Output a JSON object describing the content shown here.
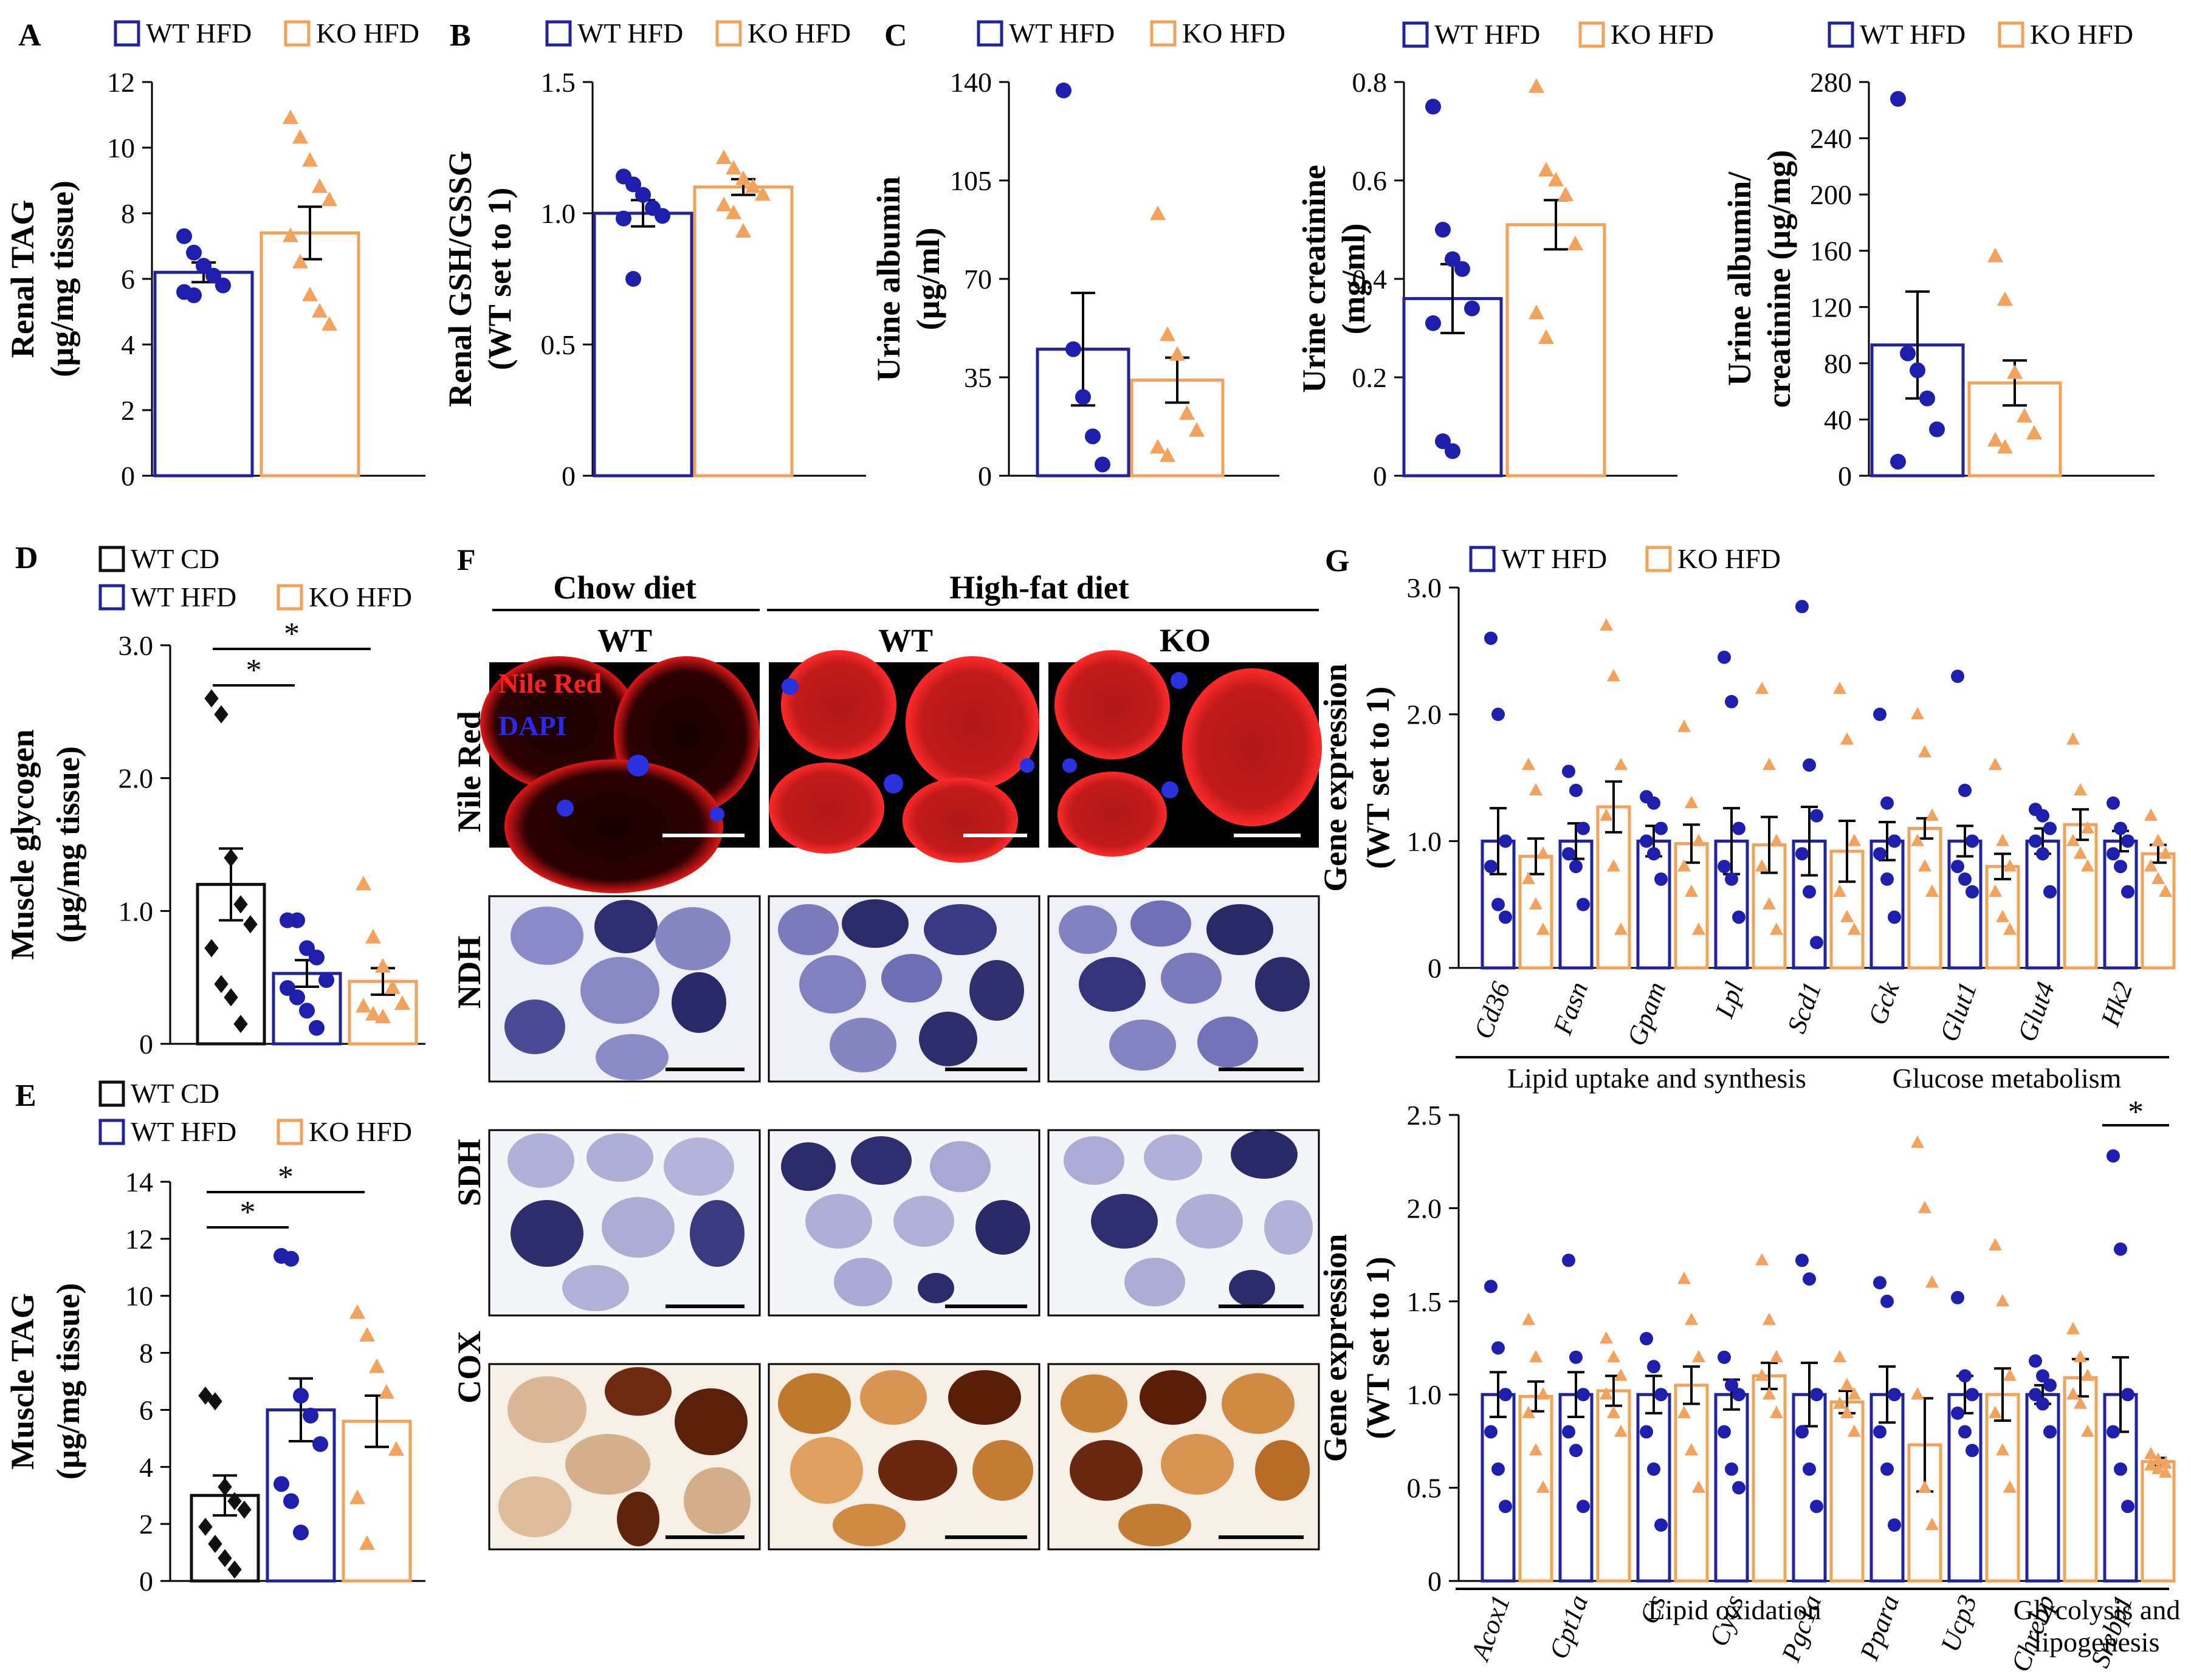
{
  "colors": {
    "wt_hfd": "#22229a",
    "ko_hfd": "#f0a15a",
    "wt_cd": "#111111",
    "wt_dot": "#1f1fae",
    "ko_dot": "#f2a25c",
    "nile_red": "#e8141e",
    "dapi": "#2a32e0",
    "ndh_sdh": "#3d3d86",
    "cox": "#8a4016"
  },
  "legend": {
    "wt_hfd": "WT HFD",
    "ko_hfd": "KO HFD",
    "wt_cd": "WT CD"
  },
  "chart_data": [
    {
      "id": "A",
      "type": "bar",
      "panel_label": "A",
      "ylabel_lines": [
        "Renal TAG",
        "(µg/mg tissue)"
      ],
      "ylim": [
        0,
        12
      ],
      "yticks": [
        0,
        2,
        4,
        6,
        8,
        10,
        12
      ],
      "tick_labels": [
        "0",
        "2",
        "4",
        "6",
        "8",
        "10",
        "12"
      ],
      "series": [
        {
          "name": "WT HFD",
          "mean": 6.2,
          "sem": 0.3,
          "points": [
            7.3,
            6.8,
            6.4,
            6.1,
            5.8,
            5.6,
            5.5
          ]
        },
        {
          "name": "KO HFD",
          "mean": 7.4,
          "sem": 0.8,
          "points": [
            10.9,
            10.3,
            9.6,
            8.8,
            8.4,
            7.3,
            6.5,
            5.5,
            5.0,
            4.6
          ]
        }
      ]
    },
    {
      "id": "B",
      "type": "bar",
      "panel_label": "B",
      "ylabel_lines": [
        "Renal GSH/GSSG",
        "(WT set to 1)"
      ],
      "ylim": [
        0,
        1.5
      ],
      "yticks": [
        0,
        0.5,
        1.0,
        1.5
      ],
      "tick_labels": [
        "0",
        "0.5",
        "1.0",
        "1.5"
      ],
      "series": [
        {
          "name": "WT HFD",
          "mean": 1.0,
          "sem": 0.05,
          "points": [
            1.14,
            1.11,
            1.07,
            1.02,
            0.99,
            0.98,
            0.75
          ]
        },
        {
          "name": "KO HFD",
          "mean": 1.1,
          "sem": 0.03,
          "points": [
            1.21,
            1.17,
            1.13,
            1.1,
            1.07,
            1.03,
            1.0,
            0.93
          ]
        }
      ]
    },
    {
      "id": "C1",
      "type": "bar",
      "panel_label": "C",
      "ylabel_lines": [
        "Urine albumin",
        "(µg/ml)"
      ],
      "ylim": [
        0,
        140
      ],
      "yticks": [
        0,
        35,
        70,
        105,
        140
      ],
      "tick_labels": [
        "0",
        "35",
        "70",
        "105",
        "140"
      ],
      "series": [
        {
          "name": "WT HFD",
          "mean": 45,
          "sem": 20,
          "points": [
            137,
            45,
            28,
            14,
            4
          ]
        },
        {
          "name": "KO HFD",
          "mean": 34,
          "sem": 8,
          "points": [
            93,
            50,
            43,
            22,
            16,
            10,
            7
          ]
        }
      ]
    },
    {
      "id": "C2",
      "type": "bar",
      "panel_label": "",
      "ylabel_lines": [
        "Urine creatinine",
        "(mg/ml)"
      ],
      "ylim": [
        0,
        0.8
      ],
      "yticks": [
        0,
        0.2,
        0.4,
        0.6,
        0.8
      ],
      "tick_labels": [
        "0",
        "0.2",
        "0.4",
        "0.6",
        "0.8"
      ],
      "series": [
        {
          "name": "WT HFD",
          "mean": 0.36,
          "sem": 0.07,
          "points": [
            0.75,
            0.5,
            0.44,
            0.42,
            0.34,
            0.31,
            0.07,
            0.05
          ]
        },
        {
          "name": "KO HFD",
          "mean": 0.51,
          "sem": 0.05,
          "points": [
            0.79,
            0.62,
            0.6,
            0.57,
            0.47,
            0.33,
            0.28
          ]
        }
      ]
    },
    {
      "id": "C3",
      "type": "bar",
      "panel_label": "",
      "ylabel_lines": [
        "Urine albumin/",
        "creatinine (µg/mg)"
      ],
      "ylim": [
        0,
        280
      ],
      "yticks": [
        0,
        40,
        80,
        120,
        160,
        200,
        240,
        280
      ],
      "tick_labels": [
        "0",
        "40",
        "80",
        "120",
        "160",
        "200",
        "240",
        "280"
      ],
      "series": [
        {
          "name": "WT HFD",
          "mean": 93,
          "sem": 38,
          "points": [
            268,
            87,
            75,
            55,
            33,
            10
          ]
        },
        {
          "name": "KO HFD",
          "mean": 66,
          "sem": 16,
          "points": [
            156,
            125,
            73,
            42,
            30,
            25,
            20
          ]
        }
      ]
    },
    {
      "id": "D",
      "type": "bar",
      "panel_label": "D",
      "ylabel_lines": [
        "Muscle glycogen",
        "(µg/mg tissue)"
      ],
      "ylim": [
        0,
        3.0
      ],
      "yticks": [
        0,
        1.0,
        2.0,
        3.0
      ],
      "tick_labels": [
        "0",
        "1.0",
        "2.0",
        "3.0"
      ],
      "significance": [
        {
          "from": 0,
          "to": 1,
          "label": "*"
        },
        {
          "from": 0,
          "to": 2,
          "label": "*"
        }
      ],
      "series": [
        {
          "name": "WT CD",
          "mean": 1.2,
          "sem": 0.27,
          "points": [
            2.6,
            2.48,
            1.4,
            1.05,
            0.9,
            0.72,
            0.45,
            0.35,
            0.15
          ]
        },
        {
          "name": "WT HFD",
          "mean": 0.53,
          "sem": 0.1,
          "points": [
            0.93,
            0.93,
            0.72,
            0.65,
            0.48,
            0.42,
            0.35,
            0.25,
            0.12
          ]
        },
        {
          "name": "KO HFD",
          "mean": 0.47,
          "sem": 0.1,
          "points": [
            1.2,
            0.8,
            0.58,
            0.42,
            0.3,
            0.28,
            0.22,
            0.2
          ]
        }
      ]
    },
    {
      "id": "E",
      "type": "bar",
      "panel_label": "E",
      "ylabel_lines": [
        "Muscle TAG",
        "(µg/mg tissue)"
      ],
      "ylim": [
        0,
        14
      ],
      "yticks": [
        0,
        2,
        4,
        6,
        8,
        10,
        12,
        14
      ],
      "tick_labels": [
        "0",
        "2",
        "4",
        "6",
        "8",
        "10",
        "12",
        "14"
      ],
      "significance": [
        {
          "from": 0,
          "to": 1,
          "label": "*"
        },
        {
          "from": 0,
          "to": 2,
          "label": "*"
        }
      ],
      "series": [
        {
          "name": "WT CD",
          "mean": 3.0,
          "sem": 0.7,
          "points": [
            6.5,
            6.3,
            3.3,
            2.8,
            2.5,
            1.9,
            1.3,
            0.8,
            0.4
          ]
        },
        {
          "name": "WT HFD",
          "mean": 6.0,
          "sem": 1.1,
          "points": [
            11.4,
            11.3,
            6.5,
            5.8,
            4.8,
            3.4,
            2.8,
            1.7
          ]
        },
        {
          "name": "KO HFD",
          "mean": 5.6,
          "sem": 0.9,
          "points": [
            9.4,
            8.6,
            7.5,
            6.6,
            4.6,
            2.9,
            1.3
          ]
        }
      ]
    },
    {
      "id": "G1",
      "type": "bar",
      "panel_label": "G",
      "ylabel_lines": [
        "Gene expression",
        "(WT set to 1)"
      ],
      "ylim": [
        0,
        3.0
      ],
      "yticks": [
        0,
        1.0,
        2.0,
        3.0
      ],
      "tick_labels": [
        "0",
        "1.0",
        "2.0",
        "3.0"
      ],
      "categories": [
        "Cd36",
        "Fasn",
        "Gpam",
        "Lpl",
        "Scd1",
        "Gck",
        "Glut1",
        "Glut4",
        "Hk2"
      ],
      "groups": [
        {
          "label": "Lipid uptake and synthesis",
          "from": 0,
          "to": 4
        },
        {
          "label": "Glucose metabolism",
          "from": 5,
          "to": 8
        }
      ],
      "significance": [],
      "series": [
        {
          "name": "WT HFD",
          "means": [
            1.0,
            1.0,
            1.0,
            1.0,
            1.0,
            1.0,
            1.0,
            1.0,
            1.0
          ],
          "sems": [
            0.26,
            0.14,
            0.12,
            0.26,
            0.27,
            0.15,
            0.12,
            0.1,
            0.08
          ],
          "points": [
            [
              2.6,
              2.0,
              1.0,
              0.8,
              0.5,
              0.4
            ],
            [
              1.55,
              1.4,
              1.1,
              0.9,
              0.8,
              0.5
            ],
            [
              1.35,
              1.3,
              1.1,
              1.0,
              0.9,
              0.7
            ],
            [
              2.45,
              2.1,
              1.1,
              0.8,
              0.7,
              0.4
            ],
            [
              2.85,
              1.6,
              1.2,
              0.9,
              0.6,
              0.2
            ],
            [
              2.0,
              1.3,
              1.0,
              0.9,
              0.7,
              0.4
            ],
            [
              2.3,
              1.4,
              1.0,
              0.8,
              0.7,
              0.6
            ],
            [
              1.25,
              1.2,
              1.1,
              1.0,
              0.9,
              0.6
            ],
            [
              1.3,
              1.1,
              1.0,
              0.9,
              0.8,
              0.6
            ]
          ]
        },
        {
          "name": "KO HFD",
          "means": [
            0.88,
            1.27,
            0.98,
            0.97,
            0.92,
            1.1,
            0.8,
            1.13,
            0.9
          ],
          "sems": [
            0.14,
            0.2,
            0.15,
            0.22,
            0.24,
            0.08,
            0.1,
            0.12,
            0.07
          ],
          "points": [
            [
              1.6,
              1.4,
              0.9,
              0.7,
              0.5,
              0.3
            ],
            [
              2.7,
              2.3,
              1.6,
              1.2,
              0.8,
              0.3
            ],
            [
              1.9,
              1.3,
              1.0,
              0.8,
              0.6,
              0.3
            ],
            [
              2.2,
              1.6,
              1.0,
              0.8,
              0.5,
              0.3
            ],
            [
              2.2,
              1.8,
              1.0,
              0.6,
              0.4,
              0.3
            ],
            [
              2.0,
              1.7,
              1.2,
              1.0,
              0.8,
              0.6
            ],
            [
              1.6,
              1.0,
              0.8,
              0.6,
              0.4,
              0.3
            ],
            [
              1.8,
              1.4,
              1.1,
              1.0,
              0.9,
              0.8
            ],
            [
              1.2,
              1.0,
              0.9,
              0.8,
              0.7,
              0.6
            ]
          ]
        }
      ]
    },
    {
      "id": "G2",
      "type": "bar",
      "panel_label": "",
      "ylabel_lines": [
        "Gene expression",
        "(WT set to 1)"
      ],
      "ylim": [
        0,
        2.5
      ],
      "yticks": [
        0,
        0.5,
        1.0,
        1.5,
        2.0,
        2.5
      ],
      "tick_labels": [
        "0",
        "0.5",
        "1.0",
        "1.5",
        "2.0",
        "2.5"
      ],
      "categories": [
        "Acox1",
        "Cpt1a",
        "Cs",
        "Cycs",
        "Pgc1a",
        "Ppara",
        "Ucp3",
        "Chrebp",
        "Srebp1"
      ],
      "groups": [
        {
          "label": "Lipid oxidation",
          "from": 0,
          "to": 6
        },
        {
          "label": "Glycolysis and lipogenesis",
          "from": 7,
          "to": 8
        }
      ],
      "significance": [
        {
          "category": 8,
          "label": "*"
        }
      ],
      "series": [
        {
          "name": "WT HFD",
          "means": [
            1.0,
            1.0,
            1.0,
            1.0,
            1.0,
            1.0,
            1.0,
            1.0,
            1.0
          ],
          "sems": [
            0.12,
            0.12,
            0.1,
            0.08,
            0.17,
            0.15,
            0.1,
            0.05,
            0.2
          ],
          "points": [
            [
              1.58,
              1.25,
              1.0,
              0.8,
              0.6,
              0.4
            ],
            [
              1.72,
              1.2,
              1.0,
              0.8,
              0.7,
              0.4
            ],
            [
              1.3,
              1.15,
              1.0,
              0.8,
              0.6,
              0.3
            ],
            [
              1.2,
              1.05,
              1.0,
              0.8,
              0.6,
              0.5
            ],
            [
              1.72,
              1.62,
              1.0,
              0.8,
              0.6,
              0.4
            ],
            [
              1.6,
              1.5,
              1.0,
              0.8,
              0.6,
              0.3
            ],
            [
              1.52,
              1.1,
              1.0,
              0.9,
              0.8,
              0.7
            ],
            [
              1.18,
              1.1,
              1.05,
              1.0,
              0.95,
              0.8
            ],
            [
              2.28,
              1.78,
              1.0,
              0.8,
              0.6,
              0.4
            ]
          ]
        },
        {
          "name": "KO HFD",
          "means": [
            0.99,
            1.02,
            1.05,
            1.1,
            0.96,
            0.73,
            1.0,
            1.09,
            0.64
          ],
          "sems": [
            0.08,
            0.08,
            0.1,
            0.07,
            0.06,
            0.25,
            0.14,
            0.1,
            0.02
          ],
          "points": [
            [
              1.4,
              1.2,
              1.0,
              0.9,
              0.7,
              0.5
            ],
            [
              1.3,
              1.2,
              1.1,
              1.0,
              0.9,
              0.8
            ],
            [
              1.62,
              1.4,
              1.2,
              0.9,
              0.7,
              0.5
            ],
            [
              1.72,
              1.4,
              1.2,
              1.1,
              1.0,
              0.9
            ],
            [
              1.2,
              1.05,
              1.0,
              0.95,
              0.9,
              0.8
            ],
            [
              2.35,
              2.0,
              1.6,
              1.0,
              0.5,
              0.3
            ],
            [
              1.8,
              1.5,
              1.1,
              0.9,
              0.7,
              0.5
            ],
            [
              1.35,
              1.2,
              1.1,
              1.0,
              0.95,
              0.8
            ],
            [
              0.68,
              0.65,
              0.63,
              0.62,
              0.6,
              0.58
            ]
          ]
        }
      ]
    }
  ],
  "histology": {
    "panel_label": "F",
    "headers": {
      "chow": "Chow diet",
      "hfd": "High-fat diet"
    },
    "columns": [
      "WT",
      "WT",
      "KO"
    ],
    "rows": [
      "Nile Red",
      "NDH",
      "SDH",
      "COX"
    ],
    "stain_labels": {
      "nile_red": "Nile Red",
      "dapi": "DAPI"
    }
  }
}
